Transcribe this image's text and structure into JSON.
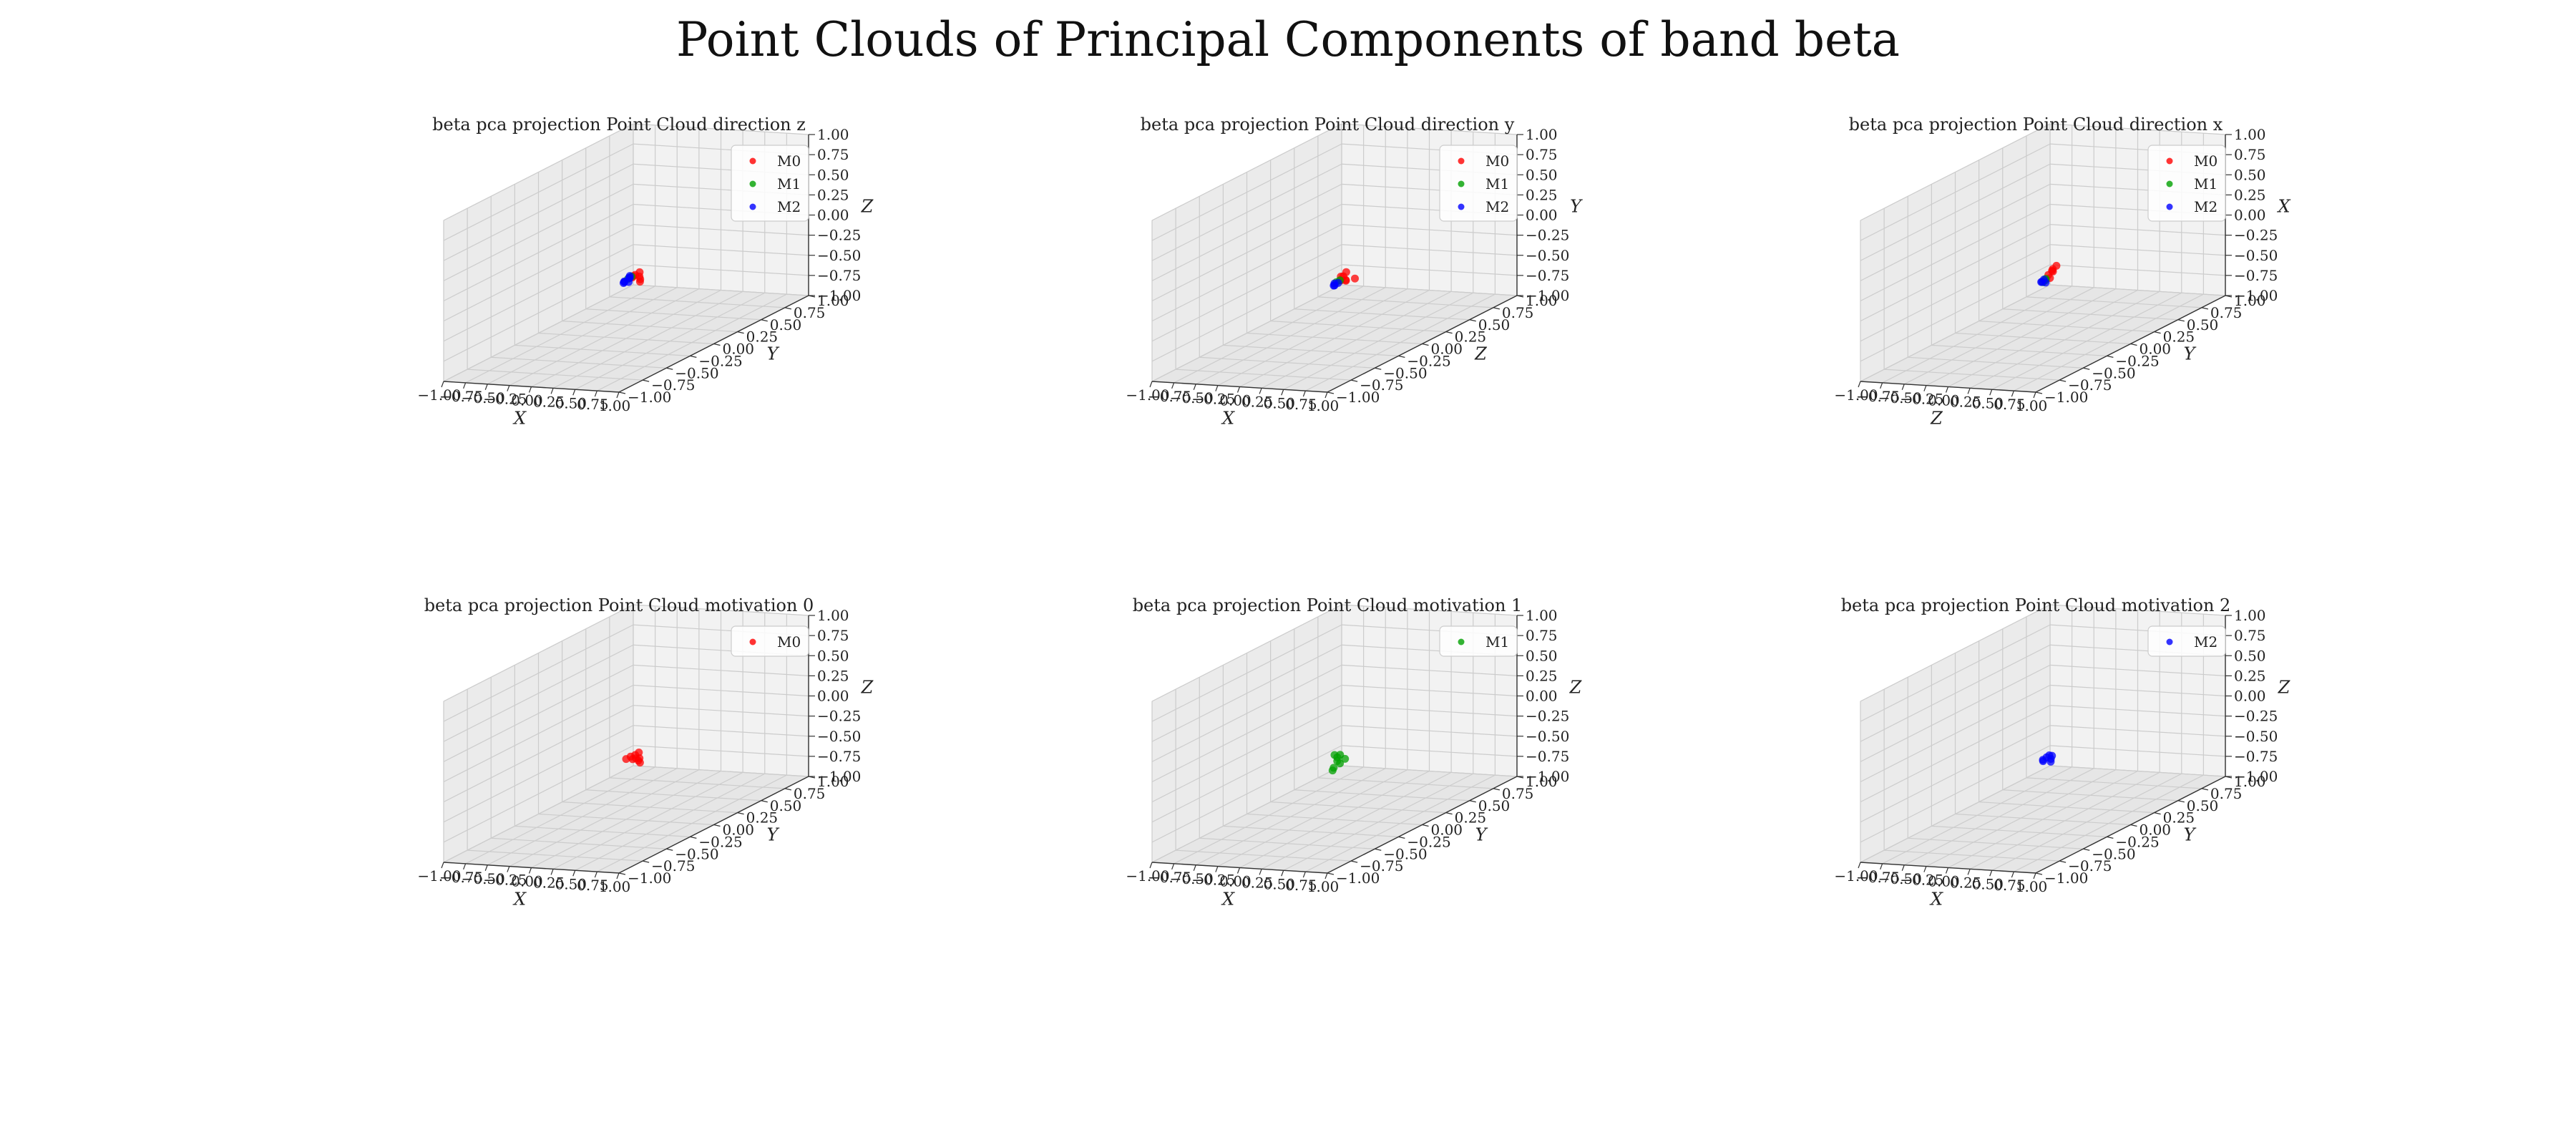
{
  "figure": {
    "title": "Point Clouds of Principal Components of band beta"
  },
  "colors": {
    "M0": "#ff0000",
    "M1": "#00a000",
    "M2": "#0000ff",
    "pane_left": "#ebebeb",
    "pane_right": "#f2f2f2",
    "pane_floor": "#e6e6e6",
    "grid": "#cccccc"
  },
  "tick_labels": [
    "−1.00",
    "−0.75",
    "−0.50",
    "−0.25",
    "0.00",
    "0.25",
    "0.50",
    "0.75",
    "1.00"
  ],
  "chart_data": [
    {
      "type": "scatter3d",
      "title": "beta pca projection Point Cloud direction z",
      "axis_labels": {
        "x": "X",
        "y": "Y",
        "z": "Z"
      },
      "xlim": [
        -1,
        1
      ],
      "ylim": [
        -1,
        1
      ],
      "zlim": [
        -1,
        1
      ],
      "legend": [
        "M0",
        "M1",
        "M2"
      ],
      "series": [
        {
          "name": "M0",
          "x": [
            0.05,
            0.08,
            0.12,
            0.15,
            0.18,
            0.1,
            0.06
          ],
          "y": [
            0.02,
            0.0,
            0.03,
            0.01,
            -0.02,
            0.05,
            0.04
          ],
          "z": [
            -0.25,
            -0.22,
            -0.24,
            -0.26,
            -0.27,
            -0.2,
            -0.23
          ]
        },
        {
          "name": "M1",
          "x": [
            0.02,
            0.04
          ],
          "y": [
            0.0,
            0.02
          ],
          "z": [
            -0.26,
            -0.24
          ]
        },
        {
          "name": "M2",
          "x": [
            -0.02,
            0.0,
            0.02,
            -0.04,
            0.01,
            0.04,
            -0.01
          ],
          "y": [
            0.0,
            -0.02,
            0.02,
            0.01,
            0.03,
            -0.01,
            0.04
          ],
          "z": [
            -0.3,
            -0.28,
            -0.26,
            -0.32,
            -0.24,
            -0.29,
            -0.27
          ]
        }
      ]
    },
    {
      "type": "scatter3d",
      "title": "beta pca projection Point Cloud direction y",
      "axis_labels": {
        "x": "X",
        "y": "Z",
        "z": "Y"
      },
      "xlim": [
        -1,
        1
      ],
      "ylim": [
        -1,
        1
      ],
      "zlim": [
        -1,
        1
      ],
      "legend": [
        "M0",
        "M1",
        "M2"
      ],
      "series": [
        {
          "name": "M0",
          "x": [
            0.05,
            0.1,
            0.15,
            0.2,
            0.08,
            0.12,
            0.03
          ],
          "y": [
            0.02,
            0.0,
            -0.02,
            0.03,
            0.05,
            0.01,
            0.04
          ],
          "z": [
            -0.24,
            -0.22,
            -0.25,
            -0.26,
            -0.2,
            -0.28,
            -0.3
          ]
        },
        {
          "name": "M1",
          "x": [
            0.02,
            0.05
          ],
          "y": [
            0.0,
            0.01
          ],
          "z": [
            -0.3,
            -0.28
          ]
        },
        {
          "name": "M2",
          "x": [
            0.0,
            0.02,
            -0.02,
            0.01
          ],
          "y": [
            0.0,
            0.02,
            0.01,
            -0.01
          ],
          "z": [
            -0.34,
            -0.32,
            -0.35,
            -0.31
          ]
        }
      ]
    },
    {
      "type": "scatter3d",
      "title": "beta pca projection Point Cloud direction x",
      "axis_labels": {
        "x": "Z",
        "y": "Y",
        "z": "X"
      },
      "xlim": [
        -1,
        1
      ],
      "ylim": [
        -1,
        1
      ],
      "zlim": [
        -1,
        1
      ],
      "legend": [
        "M0",
        "M1",
        "M2"
      ],
      "series": [
        {
          "name": "M0",
          "x": [
            0.04,
            0.06,
            0.08,
            0.1,
            0.05,
            0.07
          ],
          "y": [
            0.02,
            0.04,
            0.03,
            0.05,
            0.06,
            0.01
          ],
          "z": [
            -0.22,
            -0.18,
            -0.15,
            -0.12,
            -0.2,
            -0.25
          ]
        },
        {
          "name": "M1",
          "x": [
            0.0,
            0.02,
            0.01
          ],
          "y": [
            0.0,
            0.01,
            0.02
          ],
          "z": [
            -0.3,
            -0.28,
            -0.27
          ]
        },
        {
          "name": "M2",
          "x": [
            -0.02,
            0.0,
            0.02,
            -0.01
          ],
          "y": [
            0.0,
            -0.01,
            0.01,
            0.02
          ],
          "z": [
            -0.3,
            -0.29,
            -0.31,
            -0.28
          ]
        }
      ]
    },
    {
      "type": "scatter3d",
      "title": "beta pca projection Point Cloud motivation 0",
      "axis_labels": {
        "x": "X",
        "y": "Y",
        "z": "Z"
      },
      "xlim": [
        -1,
        1
      ],
      "ylim": [
        -1,
        1
      ],
      "zlim": [
        -1,
        1
      ],
      "legend": [
        "M0"
      ],
      "series": [
        {
          "name": "M0",
          "x": [
            0.0,
            0.03,
            0.06,
            0.1,
            0.14,
            0.18,
            0.08,
            0.02,
            0.12
          ],
          "y": [
            0.0,
            0.02,
            0.04,
            0.01,
            0.0,
            -0.02,
            0.06,
            0.05,
            0.03
          ],
          "z": [
            -0.25,
            -0.23,
            -0.22,
            -0.24,
            -0.26,
            -0.27,
            -0.2,
            -0.28,
            -0.25
          ]
        }
      ]
    },
    {
      "type": "scatter3d",
      "title": "beta pca projection Point Cloud motivation 1",
      "axis_labels": {
        "x": "X",
        "y": "Y",
        "z": "Z"
      },
      "xlim": [
        -1,
        1
      ],
      "ylim": [
        -1,
        1
      ],
      "zlim": [
        -1,
        1
      ],
      "legend": [
        "M1"
      ],
      "series": [
        {
          "name": "M1",
          "x": [
            0.0,
            0.01,
            0.02,
            0.03,
            -0.01,
            0.0,
            0.12,
            0.02
          ],
          "y": [
            0.0,
            0.02,
            0.01,
            0.03,
            0.0,
            -0.02,
            0.0,
            0.04
          ],
          "z": [
            -0.2,
            -0.24,
            -0.28,
            -0.32,
            -0.36,
            -0.38,
            -0.24,
            -0.22
          ]
        }
      ]
    },
    {
      "type": "scatter3d",
      "title": "beta pca projection Point Cloud motivation 2",
      "axis_labels": {
        "x": "X",
        "y": "Y",
        "z": "Z"
      },
      "xlim": [
        -1,
        1
      ],
      "ylim": [
        -1,
        1
      ],
      "zlim": [
        -1,
        1
      ],
      "legend": [
        "M2"
      ],
      "series": [
        {
          "name": "M2",
          "x": [
            0.0,
            0.02,
            0.04,
            0.08,
            0.1,
            -0.02,
            0.06
          ],
          "y": [
            0.0,
            0.02,
            0.03,
            0.01,
            -0.01,
            0.02,
            0.04
          ],
          "z": [
            -0.26,
            -0.24,
            -0.22,
            -0.25,
            -0.27,
            -0.29,
            -0.23
          ]
        }
      ]
    }
  ]
}
